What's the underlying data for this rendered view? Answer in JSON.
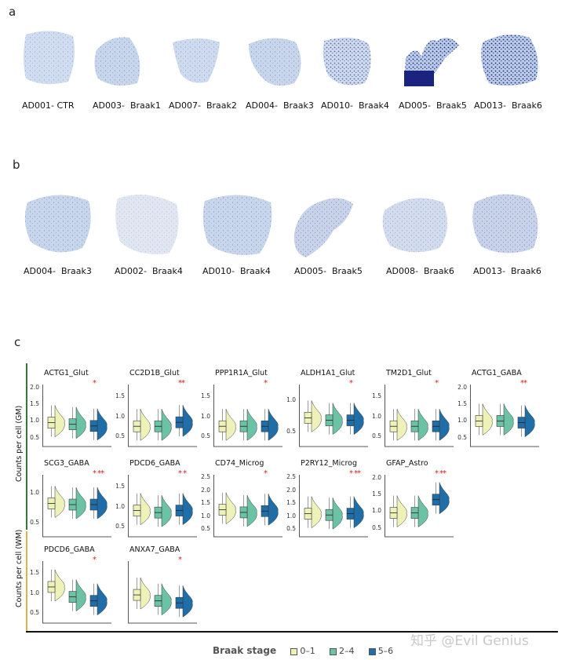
{
  "colors": {
    "c01": "#eef2b8",
    "c24": "#6cc2a4",
    "c56": "#1f6ea8",
    "sig": "#d81e1e",
    "gm": "#2e7d32",
    "wm": "#e0b341"
  },
  "panels": {
    "a": "a",
    "b": "b",
    "c": "c"
  },
  "row_a": [
    "AD001- CTR",
    "AD003-  Braak1",
    "AD007-  Braak2",
    "AD004-  Braak3",
    "AD010-  Braak4",
    "AD005-  Braak5",
    "AD013-  Braak6"
  ],
  "row_b": [
    "AD004-  Braak3",
    "AD002-  Braak4",
    "AD010-  Braak4",
    "AD005-  Braak5",
    "AD008-  Braak6",
    "AD013-  Braak6"
  ],
  "ylabels": {
    "gm": "Counts per cell (GM)",
    "wm": "Counts per cell (WM)"
  },
  "legend": {
    "title": "Braak stage",
    "items": [
      "0–1",
      "2–4",
      "5–6"
    ]
  },
  "watermark": "知乎 @Evil Genius",
  "chart_data": {
    "type": "violin-box",
    "ylabel_gm": "Counts per cell (GM)",
    "ylabel_wm": "Counts per cell (WM)",
    "groups": [
      "0–1",
      "2–4",
      "5–6"
    ],
    "plots": [
      {
        "title": "ACTG1_Glut",
        "region": "GM",
        "ticks": [
          "2.0",
          "1.5",
          "1.0",
          "0.5"
        ],
        "ylim": [
          0.3,
          2.1
        ],
        "medians": [
          0.95,
          0.9,
          0.85
        ],
        "sig": "*"
      },
      {
        "title": "CC2D1B_Glut",
        "region": "GM",
        "ticks": [
          "1.5",
          "1.0",
          "0.5"
        ],
        "ylim": [
          0.3,
          1.8
        ],
        "medians": [
          0.75,
          0.75,
          0.85
        ],
        "sig": "**"
      },
      {
        "title": "PPP1R1A_Glut",
        "region": "GM",
        "ticks": [
          "1.5",
          "1.0",
          "0.5"
        ],
        "ylim": [
          0.3,
          1.8
        ],
        "medians": [
          0.75,
          0.75,
          0.75
        ],
        "sig": "*"
      },
      {
        "title": "ALDH1A1_Glut",
        "region": "GM",
        "ticks": [
          "1.0",
          "0.5"
        ],
        "ylim": [
          0.3,
          1.25
        ],
        "medians": [
          0.72,
          0.68,
          0.68
        ],
        "sig": "*"
      },
      {
        "title": "TM2D1_Glut",
        "region": "GM",
        "ticks": [
          "1.5",
          "1.0",
          "0.5"
        ],
        "ylim": [
          0.3,
          1.8
        ],
        "medians": [
          0.75,
          0.75,
          0.75
        ],
        "sig": "*"
      },
      {
        "title": "ACTG1_GABA",
        "region": "GM",
        "ticks": [
          "2.0",
          "1.5",
          "1.0",
          "0.5"
        ],
        "ylim": [
          0.3,
          2.1
        ],
        "medians": [
          1.0,
          1.0,
          0.95
        ],
        "sig": "**"
      },
      {
        "title": "SCG3_GABA",
        "region": "GM",
        "ticks": [
          "1.0",
          "0.5"
        ],
        "ylim": [
          0.3,
          1.3
        ],
        "medians": [
          0.82,
          0.8,
          0.8
        ],
        "sig": "* **"
      },
      {
        "title": "PDCD6_GABA",
        "region": "GM",
        "ticks": [
          "1.5",
          "1.0",
          "0.5"
        ],
        "ylim": [
          0.3,
          1.8
        ],
        "medians": [
          0.9,
          0.85,
          0.9
        ],
        "sig": "* *"
      },
      {
        "title": "CD74_Microg",
        "region": "GM",
        "ticks": [
          "2.5",
          "2.0",
          "1.5",
          "1.0",
          "0.5"
        ],
        "ylim": [
          0.3,
          2.6
        ],
        "medians": [
          1.25,
          1.15,
          1.2
        ],
        "sig": "*"
      },
      {
        "title": "P2RY12_Microg",
        "region": "GM",
        "ticks": [
          "2.5",
          "2.0",
          "1.5",
          "1.0",
          "0.5"
        ],
        "ylim": [
          0.3,
          2.6
        ],
        "medians": [
          1.1,
          1.05,
          1.1
        ],
        "sig": "* **"
      },
      {
        "title": "GFAP_Astro",
        "region": "GM",
        "ticks": [
          "2.0",
          "1.5",
          "1.0",
          "0.5"
        ],
        "ylim": [
          0.3,
          2.1
        ],
        "medians": [
          0.95,
          0.95,
          1.35
        ],
        "sig": "* **"
      },
      {
        "title": "PDCD6_GABA",
        "region": "WM",
        "ticks": [
          "1.5",
          "1.0",
          "0.5"
        ],
        "ylim": [
          0.3,
          1.8
        ],
        "medians": [
          1.15,
          0.9,
          0.8
        ],
        "sig": "*"
      },
      {
        "title": "ANXA7_GABA",
        "region": "WM",
        "ticks": [],
        "ylim": [
          0.3,
          1.8
        ],
        "medians": [
          0.95,
          0.8,
          0.75
        ],
        "sig": "*"
      }
    ]
  }
}
